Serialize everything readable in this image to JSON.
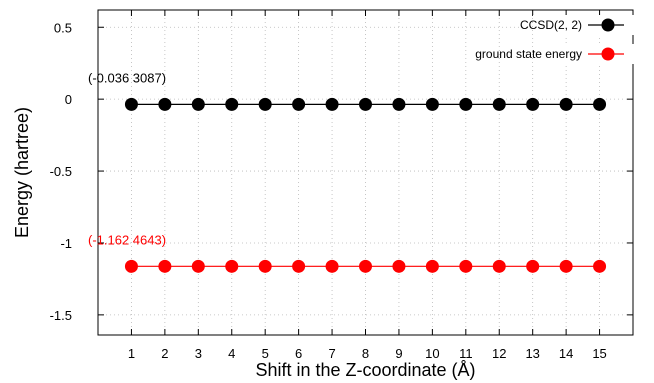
{
  "chart_data": {
    "type": "line",
    "xlabel": "Shift in the Z-coordinate (Å)",
    "ylabel": "Energy (hartree)",
    "x": [
      1,
      2,
      3,
      4,
      5,
      6,
      7,
      8,
      9,
      10,
      11,
      12,
      13,
      14,
      15
    ],
    "x_ticks": [
      "1",
      "2",
      "3",
      "4",
      "5",
      "6",
      "7",
      "8",
      "9",
      "10",
      "11",
      "12",
      "13",
      "14",
      "15"
    ],
    "y_ticks": [
      {
        "value": 0.5,
        "label": "0.5"
      },
      {
        "value": 0,
        "label": "0"
      },
      {
        "value": -0.5,
        "label": "-0.5"
      },
      {
        "value": -1,
        "label": "-1"
      },
      {
        "value": -1.5,
        "label": "-1.5"
      }
    ],
    "xlim": [
      0,
      16
    ],
    "ylim": [
      -1.64,
      0.62
    ],
    "grid": true,
    "legend_position": "top-right",
    "series": [
      {
        "name": "CCSD(2, 2)",
        "color": "#000000",
        "values": [
          -0.0363087,
          -0.0363087,
          -0.0363087,
          -0.0363087,
          -0.0363087,
          -0.0363087,
          -0.0363087,
          -0.0363087,
          -0.0363087,
          -0.0363087,
          -0.0363087,
          -0.0363087,
          -0.0363087,
          -0.0363087,
          -0.0363087
        ]
      },
      {
        "name": "ground state energy",
        "color": "#ff0000",
        "values": [
          -1.1624643,
          -1.1624643,
          -1.1624643,
          -1.1624643,
          -1.1624643,
          -1.1624643,
          -1.1624643,
          -1.1624643,
          -1.1624643,
          -1.1624643,
          -1.1624643,
          -1.1624643,
          -1.1624643,
          -1.1624643,
          -1.1624643
        ]
      }
    ],
    "annotations": [
      {
        "text": "(-0.036 3087)",
        "color": "#000000",
        "anchor_y": -0.0363087
      },
      {
        "text": "(-1.162 4643)",
        "color": "#ff0000",
        "anchor_y": -1.1624643
      }
    ]
  }
}
